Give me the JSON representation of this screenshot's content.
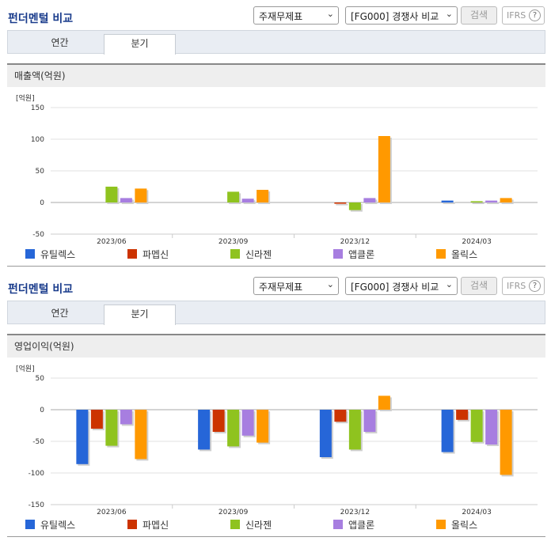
{
  "header": {
    "title": "펀더멘털 비교",
    "select_statement": "주재무제표",
    "select_compare": "[FG000] 경쟁사 비교",
    "search_label": "검색",
    "ifrs_label": "IFRS",
    "help_label": "?"
  },
  "tabs": [
    {
      "label": "연간"
    },
    {
      "label": "분기"
    }
  ],
  "legend": [
    {
      "name": "유틸렉스",
      "color": "#2666d8"
    },
    {
      "name": "파멥신",
      "color": "#cc3300"
    },
    {
      "name": "신라젠",
      "color": "#8fc31f"
    },
    {
      "name": "앱클론",
      "color": "#a77ee0"
    },
    {
      "name": "올릭스",
      "color": "#ff9900"
    }
  ],
  "chart_data": [
    {
      "type": "bar",
      "title": "매출액(억원)",
      "ylabel": "[억원]",
      "categories": [
        "2023/06",
        "2023/09",
        "2023/12",
        "2024/03"
      ],
      "ylim": [
        -50,
        150
      ],
      "yticks": [
        -50,
        0,
        50,
        100,
        150
      ],
      "series": [
        {
          "name": "유틸렉스",
          "values": [
            null,
            null,
            null,
            3
          ]
        },
        {
          "name": "파멥신",
          "values": [
            null,
            null,
            -2,
            null
          ]
        },
        {
          "name": "신라젠",
          "values": [
            25,
            17,
            -12,
            2
          ]
        },
        {
          "name": "앱클론",
          "values": [
            7,
            6,
            7,
            3
          ]
        },
        {
          "name": "올릭스",
          "values": [
            22,
            20,
            105,
            7
          ]
        }
      ]
    },
    {
      "type": "bar",
      "title": "영업이익(억원)",
      "ylabel": "[억원]",
      "categories": [
        "2023/06",
        "2023/09",
        "2023/12",
        "2024/03"
      ],
      "ylim": [
        -150,
        50
      ],
      "yticks": [
        -150,
        -100,
        -50,
        0,
        50
      ],
      "series": [
        {
          "name": "유틸렉스",
          "values": [
            -86,
            -63,
            -75,
            -67
          ]
        },
        {
          "name": "파멥신",
          "values": [
            -30,
            -35,
            -19,
            -16
          ]
        },
        {
          "name": "신라젠",
          "values": [
            -57,
            -58,
            -63,
            -51
          ]
        },
        {
          "name": "앱클론",
          "values": [
            -23,
            -41,
            -35,
            -55
          ]
        },
        {
          "name": "올릭스",
          "values": [
            -78,
            -52,
            22,
            -103
          ]
        }
      ]
    }
  ]
}
